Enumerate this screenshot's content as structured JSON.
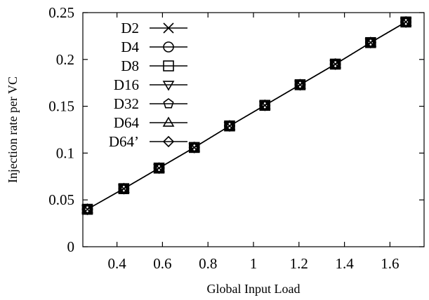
{
  "chart_data": {
    "type": "line",
    "title": "",
    "xlabel": "Global Input Load",
    "ylabel": "Injection rate per VC",
    "xlim": [
      0.25,
      1.75
    ],
    "ylim": [
      0,
      0.25
    ],
    "x_ticks": [
      "0.4",
      "0.6",
      "0.8",
      "1",
      "1.2",
      "1.4",
      "1.6"
    ],
    "y_ticks": [
      "0",
      "0.05",
      "0.1",
      "0.15",
      "0.2",
      "0.25"
    ],
    "grid": false,
    "legend_position": "top-left",
    "x": [
      0.27,
      0.43,
      0.585,
      0.74,
      0.895,
      1.05,
      1.205,
      1.36,
      1.515,
      1.67
    ],
    "series": [
      {
        "name": "D2",
        "marker": "cross",
        "values": [
          0.04,
          0.062,
          0.084,
          0.106,
          0.129,
          0.151,
          0.173,
          0.195,
          0.218,
          0.24
        ]
      },
      {
        "name": "D4",
        "marker": "circle",
        "values": [
          0.04,
          0.062,
          0.084,
          0.106,
          0.129,
          0.151,
          0.173,
          0.195,
          0.218,
          0.24
        ]
      },
      {
        "name": "D8",
        "marker": "square",
        "values": [
          0.04,
          0.062,
          0.084,
          0.106,
          0.129,
          0.151,
          0.173,
          0.195,
          0.218,
          0.24
        ]
      },
      {
        "name": "D16",
        "marker": "triangle-down",
        "values": [
          0.04,
          0.062,
          0.084,
          0.106,
          0.129,
          0.151,
          0.173,
          0.195,
          0.218,
          0.24
        ]
      },
      {
        "name": "D32",
        "marker": "pentagon",
        "values": [
          0.04,
          0.062,
          0.084,
          0.106,
          0.129,
          0.151,
          0.173,
          0.195,
          0.218,
          0.24
        ]
      },
      {
        "name": "D64",
        "marker": "triangle-up",
        "values": [
          0.04,
          0.062,
          0.084,
          0.106,
          0.129,
          0.151,
          0.173,
          0.195,
          0.218,
          0.24
        ]
      },
      {
        "name": "D64’",
        "marker": "diamond",
        "values": [
          0.04,
          0.062,
          0.084,
          0.106,
          0.129,
          0.151,
          0.173,
          0.195,
          0.218,
          0.24
        ]
      }
    ],
    "line_color": "#000000"
  }
}
